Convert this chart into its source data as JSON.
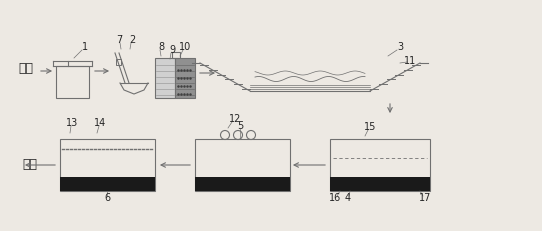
{
  "bg_color": "#ede9e3",
  "line_color": "#707070",
  "dark_fill": "#1a1a1a",
  "label_color": "#303030",
  "fig_width": 5.42,
  "fig_height": 2.31,
  "dpi": 100,
  "labels": {
    "sewage": "污水",
    "outflow": "出水",
    "n1": "1",
    "n2": "2",
    "n3": "3",
    "n4": "4",
    "n5": "5",
    "n6": "6",
    "n7": "7",
    "n8": "8",
    "n9": "9",
    "n10": "10",
    "n11": "11",
    "n12": "12",
    "n13": "13",
    "n14": "14",
    "n15": "15",
    "n16": "16",
    "n17": "17"
  }
}
